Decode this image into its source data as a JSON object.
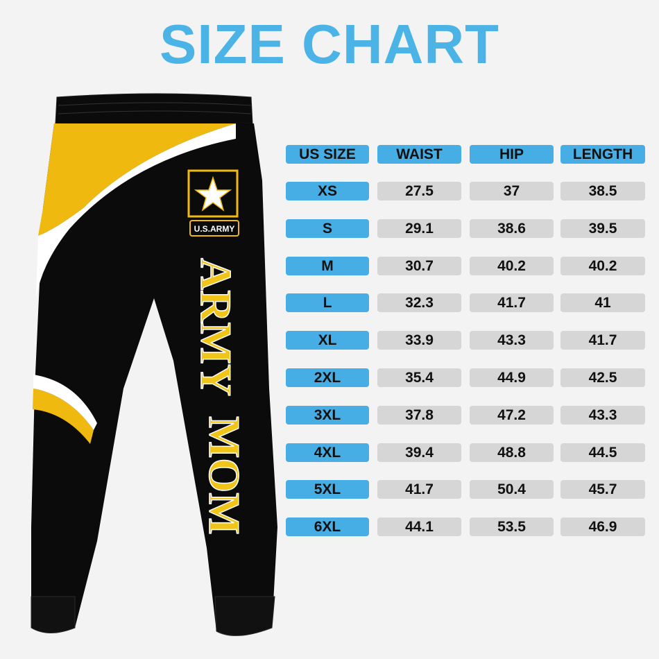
{
  "title": "SIZE CHART",
  "product": {
    "logo_text": "U.S.ARMY",
    "leg_text_1": "ARMY",
    "leg_text_2": "MOM"
  },
  "colors": {
    "title": "#4cb3e6",
    "header_cell": "#46ade5",
    "value_cell": "#d6d6d6",
    "pants_black": "#0b0b0b",
    "pants_yellow": "#f0b90f"
  },
  "chart_data": {
    "type": "table",
    "columns": [
      "US SIZE",
      "WAIST",
      "HIP",
      "LENGTH"
    ],
    "rows": [
      [
        "XS",
        "27.5",
        "37",
        "38.5"
      ],
      [
        "S",
        "29.1",
        "38.6",
        "39.5"
      ],
      [
        "M",
        "30.7",
        "40.2",
        "40.2"
      ],
      [
        "L",
        "32.3",
        "41.7",
        "41"
      ],
      [
        "XL",
        "33.9",
        "43.3",
        "41.7"
      ],
      [
        "2XL",
        "35.4",
        "44.9",
        "42.5"
      ],
      [
        "3XL",
        "37.8",
        "47.2",
        "43.3"
      ],
      [
        "4XL",
        "39.4",
        "48.8",
        "44.5"
      ],
      [
        "5XL",
        "41.7",
        "50.4",
        "45.7"
      ],
      [
        "6XL",
        "44.1",
        "53.5",
        "46.9"
      ]
    ]
  }
}
